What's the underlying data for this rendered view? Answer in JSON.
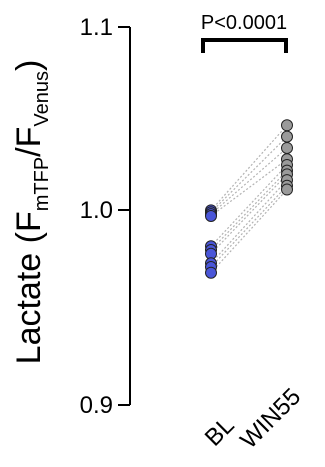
{
  "chart_data": {
    "type": "scatter",
    "style": "paired",
    "categories": [
      "BL",
      "WIN55"
    ],
    "ylabel": {
      "main": "Lactate (F",
      "sub1": "mTFP",
      "mid": "/F",
      "sub2": "Venus",
      "end": ")"
    },
    "ylim": [
      0.9,
      1.1
    ],
    "yticks": [
      "0.9",
      "1.0",
      "1.1"
    ],
    "significance": {
      "label": "P<0.0001",
      "between": [
        "BL",
        "WIN55"
      ]
    },
    "pairs": [
      [
        1.003,
        1.048
      ],
      [
        1.002,
        1.042
      ],
      [
        1.001,
        1.036
      ],
      [
        1.0,
        1.03
      ],
      [
        0.984,
        1.027
      ],
      [
        0.982,
        1.024
      ],
      [
        0.98,
        1.022
      ],
      [
        0.975,
        1.019
      ],
      [
        0.973,
        1.016
      ],
      [
        0.97,
        1.014
      ]
    ],
    "colors": {
      "BL": "#4a56d8",
      "WIN55": "#9a9a9a",
      "connector": "#b3b3b3",
      "axis": "#000000"
    },
    "grid": false,
    "legend": "none"
  }
}
